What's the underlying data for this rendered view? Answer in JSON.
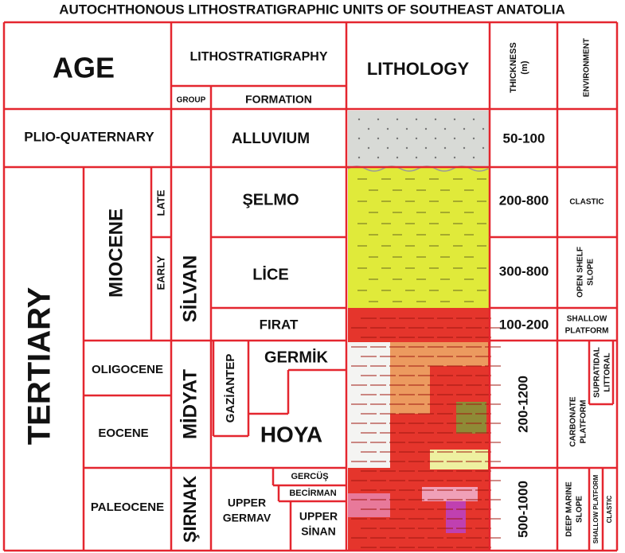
{
  "title": "AUTOCHTHONOUS LITHOSTRATIGRAPHIC UNITS OF SOUTHEAST ANATOLIA",
  "header": {
    "age": "AGE",
    "lithostratigraphy": "LITHOSTRATIGRAPHY",
    "group": "GROUP",
    "formation": "FORMATION",
    "lithology": "LITHOLOGY",
    "thickness": [
      "THICKNESS",
      "(m)"
    ],
    "environment": "ENVIRONMENT"
  },
  "age": {
    "plio_quaternary": "PLIO-QUATERNARY",
    "tertiary": "TERTIARY",
    "miocene": "MIOCENE",
    "late": "LATE",
    "early": "EARLY",
    "oligocene": "OLIGOCENE",
    "eocene": "EOCENE",
    "paleocene": "PALEOCENE"
  },
  "groups": {
    "silvan": "SİLVAN",
    "midyat": "MİDYAT",
    "gaziantep": "GAZİANTEP",
    "sirnak": "ŞIRNAK"
  },
  "formations": {
    "alluvium": "ALLUVIUM",
    "selmo": "ŞELMO",
    "lice": "LİCE",
    "firat": "FIRAT",
    "germik": "GERMİK",
    "hoya": "HOYA",
    "gercus": "GERCÜŞ",
    "becirman": "BECİRMAN",
    "upper_germav": [
      "UPPER",
      "GERMAV"
    ],
    "upper_sinan": [
      "UPPER",
      "SİNAN"
    ]
  },
  "thickness": [
    "50-100",
    "200-800",
    "300-800",
    "100-200",
    "200-1200",
    "500-1000"
  ],
  "environment": {
    "clastic": "CLASTIC",
    "open_shelf_slope": [
      "OPEN SHELF",
      "SLOPE"
    ],
    "shallow_platform": [
      "SHALLOW",
      "PLATFORM"
    ],
    "carbonate_platform": [
      "CARBONATE",
      "PLATFORM"
    ],
    "supratidal_littoral": [
      "SUPRATIDAL",
      "LITTORAL"
    ],
    "deep_marine_slope": [
      "DEEP MARINE",
      "SLOPE"
    ],
    "shallow_platform_2": "SHALLOW PLATFORM",
    "clastic_2": "CLASTIC"
  }
}
